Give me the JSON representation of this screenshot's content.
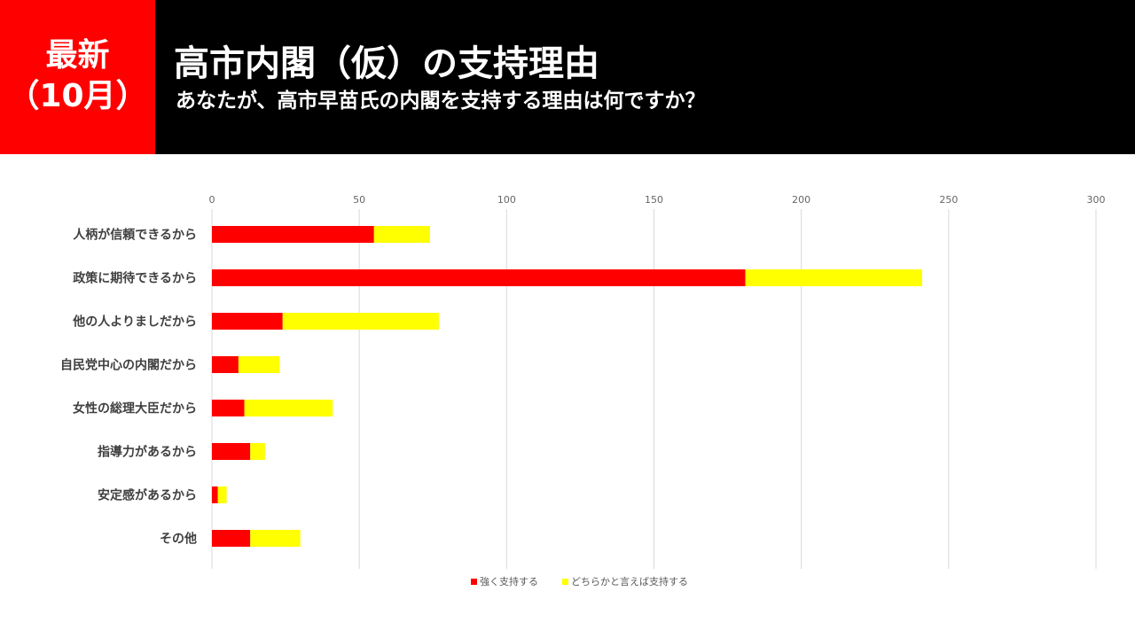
{
  "header": {
    "badge_line1": "最新",
    "badge_line2": "（10月）",
    "title": "高市内閣（仮）の支持理由",
    "subtitle": "あなたが、高市早苗氏の内閣を支持する理由は何ですか？"
  },
  "colors": {
    "header_bg": "#000000",
    "badge_bg": "#ff0000",
    "series1": "#ff0000",
    "series2": "#ffff00"
  },
  "chart_data": {
    "type": "bar",
    "orientation": "horizontal",
    "stacked": true,
    "categories": [
      "人柄が信頼できるから",
      "政策に期待できるから",
      "他の人よりましだから",
      "自民党中心の内閣だから",
      "女性の総理大臣だから",
      "指導力があるから",
      "安定感があるから",
      "その他"
    ],
    "series": [
      {
        "name": "強く支持する",
        "color": "#ff0000",
        "values": [
          55,
          181,
          24,
          9,
          11,
          13,
          2,
          13
        ]
      },
      {
        "name": "どちらかと言えば支持する",
        "color": "#ffff00",
        "values": [
          19,
          60,
          53,
          14,
          30,
          5,
          3,
          17
        ]
      }
    ],
    "xlim": [
      0,
      300
    ],
    "xticks": [
      0,
      50,
      100,
      150,
      200,
      250,
      300
    ],
    "grid": true,
    "xaxis_position": "top",
    "legend_position": "bottom"
  }
}
